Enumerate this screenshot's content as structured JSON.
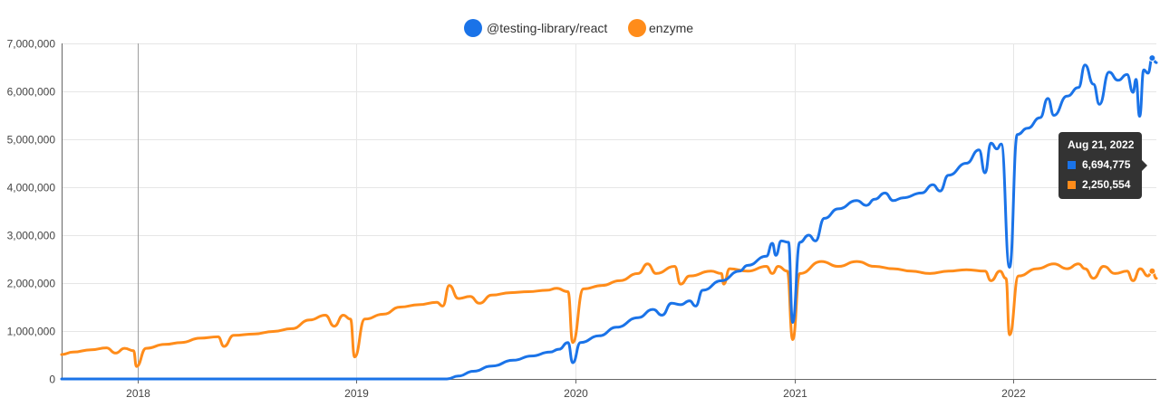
{
  "chart_data": {
    "type": "line",
    "title": "",
    "xlabel": "",
    "ylabel": "",
    "ylim": [
      0,
      7000000
    ],
    "yticks": [
      0,
      1000000,
      2000000,
      3000000,
      4000000,
      5000000,
      6000000,
      7000000
    ],
    "ytick_labels": [
      "0",
      "1,000,000",
      "2,000,000",
      "3,000,000",
      "4,000,000",
      "5,000,000",
      "6,000,000",
      "7,000,000"
    ],
    "xlim": [
      "2017-08-27",
      "2022-08-28"
    ],
    "xticks": [
      "2018-01-01",
      "2019-01-01",
      "2020-01-01",
      "2021-01-01",
      "2022-01-01"
    ],
    "xtick_labels": [
      "2018",
      "2019",
      "2020",
      "2021",
      "2022"
    ],
    "grid": true,
    "legend_position": "top-center",
    "series": [
      {
        "name": "@testing-library/react",
        "color": "#1a73e8",
        "points": [
          [
            "2017-08-27",
            0
          ],
          [
            "2018-01-01",
            0
          ],
          [
            "2019-01-01",
            0
          ],
          [
            "2019-06-01",
            0
          ],
          [
            "2019-06-20",
            60000
          ],
          [
            "2019-07-15",
            160000
          ],
          [
            "2019-08-15",
            270000
          ],
          [
            "2019-09-20",
            390000
          ],
          [
            "2019-10-20",
            480000
          ],
          [
            "2019-11-20",
            560000
          ],
          [
            "2019-12-05",
            620000
          ],
          [
            "2019-12-20",
            760000
          ],
          [
            "2019-12-28",
            340000
          ],
          [
            "2020-01-10",
            760000
          ],
          [
            "2020-02-10",
            900000
          ],
          [
            "2020-03-10",
            1080000
          ],
          [
            "2020-04-15",
            1280000
          ],
          [
            "2020-05-10",
            1450000
          ],
          [
            "2020-05-25",
            1330000
          ],
          [
            "2020-06-10",
            1580000
          ],
          [
            "2020-06-25",
            1550000
          ],
          [
            "2020-07-10",
            1630000
          ],
          [
            "2020-07-20",
            1520000
          ],
          [
            "2020-08-01",
            1850000
          ],
          [
            "2020-09-01",
            2050000
          ],
          [
            "2020-10-01",
            2250000
          ],
          [
            "2020-10-15",
            2370000
          ],
          [
            "2020-11-15",
            2560000
          ],
          [
            "2020-11-25",
            2830000
          ],
          [
            "2020-12-01",
            2580000
          ],
          [
            "2020-12-10",
            2880000
          ],
          [
            "2020-12-22",
            2850000
          ],
          [
            "2020-12-29",
            1180000
          ],
          [
            "2021-01-10",
            2850000
          ],
          [
            "2021-01-25",
            3000000
          ],
          [
            "2021-02-05",
            2880000
          ],
          [
            "2021-02-20",
            3350000
          ],
          [
            "2021-03-15",
            3550000
          ],
          [
            "2021-04-15",
            3720000
          ],
          [
            "2021-05-01",
            3620000
          ],
          [
            "2021-05-15",
            3750000
          ],
          [
            "2021-06-01",
            3880000
          ],
          [
            "2021-06-15",
            3720000
          ],
          [
            "2021-07-01",
            3780000
          ],
          [
            "2021-08-01",
            3880000
          ],
          [
            "2021-08-20",
            4050000
          ],
          [
            "2021-09-01",
            3920000
          ],
          [
            "2021-09-15",
            4250000
          ],
          [
            "2021-10-15",
            4500000
          ],
          [
            "2021-11-05",
            4780000
          ],
          [
            "2021-11-15",
            4300000
          ],
          [
            "2021-11-25",
            4920000
          ],
          [
            "2021-12-05",
            4800000
          ],
          [
            "2021-12-12",
            4900000
          ],
          [
            "2021-12-26",
            2330000
          ],
          [
            "2022-01-08",
            5100000
          ],
          [
            "2022-01-25",
            5230000
          ],
          [
            "2022-02-15",
            5450000
          ],
          [
            "2022-02-28",
            5850000
          ],
          [
            "2022-03-10",
            5500000
          ],
          [
            "2022-04-01",
            5900000
          ],
          [
            "2022-04-20",
            6080000
          ],
          [
            "2022-05-01",
            6550000
          ],
          [
            "2022-05-15",
            6150000
          ],
          [
            "2022-05-25",
            5730000
          ],
          [
            "2022-06-10",
            6400000
          ],
          [
            "2022-06-25",
            6230000
          ],
          [
            "2022-07-10",
            6350000
          ],
          [
            "2022-07-20",
            5980000
          ],
          [
            "2022-07-25",
            6250000
          ],
          [
            "2022-07-31",
            5480000
          ],
          [
            "2022-08-07",
            6450000
          ],
          [
            "2022-08-14",
            6380000
          ],
          [
            "2022-08-21",
            6694775
          ],
          [
            "2022-08-28",
            6600000
          ]
        ]
      },
      {
        "name": "enzyme",
        "color": "#ff8c1a",
        "points": [
          [
            "2017-08-27",
            510000
          ],
          [
            "2017-09-15",
            560000
          ],
          [
            "2017-10-15",
            610000
          ],
          [
            "2017-11-10",
            650000
          ],
          [
            "2017-11-25",
            540000
          ],
          [
            "2017-12-10",
            640000
          ],
          [
            "2017-12-25",
            590000
          ],
          [
            "2017-12-30",
            260000
          ],
          [
            "2018-01-15",
            640000
          ],
          [
            "2018-02-15",
            720000
          ],
          [
            "2018-03-15",
            760000
          ],
          [
            "2018-04-15",
            850000
          ],
          [
            "2018-05-15",
            880000
          ],
          [
            "2018-05-25",
            680000
          ],
          [
            "2018-06-10",
            910000
          ],
          [
            "2018-07-15",
            940000
          ],
          [
            "2018-08-15",
            990000
          ],
          [
            "2018-09-15",
            1050000
          ],
          [
            "2018-10-15",
            1230000
          ],
          [
            "2018-11-10",
            1330000
          ],
          [
            "2018-11-25",
            1100000
          ],
          [
            "2018-12-10",
            1330000
          ],
          [
            "2018-12-22",
            1250000
          ],
          [
            "2018-12-29",
            460000
          ],
          [
            "2019-01-15",
            1250000
          ],
          [
            "2019-02-15",
            1350000
          ],
          [
            "2019-03-15",
            1500000
          ],
          [
            "2019-04-15",
            1550000
          ],
          [
            "2019-05-15",
            1600000
          ],
          [
            "2019-05-25",
            1520000
          ],
          [
            "2019-06-05",
            1950000
          ],
          [
            "2019-06-20",
            1680000
          ],
          [
            "2019-07-10",
            1720000
          ],
          [
            "2019-07-25",
            1580000
          ],
          [
            "2019-08-15",
            1750000
          ],
          [
            "2019-09-15",
            1800000
          ],
          [
            "2019-10-15",
            1820000
          ],
          [
            "2019-11-15",
            1850000
          ],
          [
            "2019-12-01",
            1890000
          ],
          [
            "2019-12-20",
            1820000
          ],
          [
            "2019-12-28",
            760000
          ],
          [
            "2020-01-15",
            1880000
          ],
          [
            "2020-02-15",
            1950000
          ],
          [
            "2020-03-15",
            2050000
          ],
          [
            "2020-04-15",
            2200000
          ],
          [
            "2020-05-01",
            2400000
          ],
          [
            "2020-05-15",
            2200000
          ],
          [
            "2020-06-15",
            2350000
          ],
          [
            "2020-06-25",
            1980000
          ],
          [
            "2020-07-10",
            2150000
          ],
          [
            "2020-08-15",
            2250000
          ],
          [
            "2020-09-01",
            2200000
          ],
          [
            "2020-09-05",
            1980000
          ],
          [
            "2020-09-15",
            2300000
          ],
          [
            "2020-10-15",
            2250000
          ],
          [
            "2020-11-15",
            2350000
          ],
          [
            "2020-11-25",
            2200000
          ],
          [
            "2020-12-05",
            2350000
          ],
          [
            "2020-12-20",
            2250000
          ],
          [
            "2020-12-29",
            820000
          ],
          [
            "2021-01-10",
            2200000
          ],
          [
            "2021-02-15",
            2450000
          ],
          [
            "2021-03-15",
            2350000
          ],
          [
            "2021-04-15",
            2450000
          ],
          [
            "2021-05-15",
            2350000
          ],
          [
            "2021-06-15",
            2300000
          ],
          [
            "2021-07-15",
            2250000
          ],
          [
            "2021-08-15",
            2200000
          ],
          [
            "2021-09-15",
            2250000
          ],
          [
            "2021-10-15",
            2280000
          ],
          [
            "2021-11-15",
            2250000
          ],
          [
            "2021-11-25",
            2050000
          ],
          [
            "2021-12-10",
            2250000
          ],
          [
            "2021-12-20",
            2100000
          ],
          [
            "2021-12-26",
            920000
          ],
          [
            "2022-01-10",
            2150000
          ],
          [
            "2022-02-10",
            2300000
          ],
          [
            "2022-03-10",
            2400000
          ],
          [
            "2022-04-01",
            2300000
          ],
          [
            "2022-04-20",
            2400000
          ],
          [
            "2022-05-01",
            2300000
          ],
          [
            "2022-05-15",
            2100000
          ],
          [
            "2022-06-01",
            2350000
          ],
          [
            "2022-06-20",
            2200000
          ],
          [
            "2022-07-10",
            2250000
          ],
          [
            "2022-07-20",
            2050000
          ],
          [
            "2022-08-01",
            2300000
          ],
          [
            "2022-08-14",
            2150000
          ],
          [
            "2022-08-21",
            2250554
          ],
          [
            "2022-08-28",
            2100000
          ]
        ]
      }
    ]
  },
  "tooltip": {
    "date": "Aug 21, 2022",
    "value_1": "6,694,775",
    "value_2": "2,250,554",
    "color_1": "#1a73e8",
    "color_2": "#ff8c1a"
  }
}
